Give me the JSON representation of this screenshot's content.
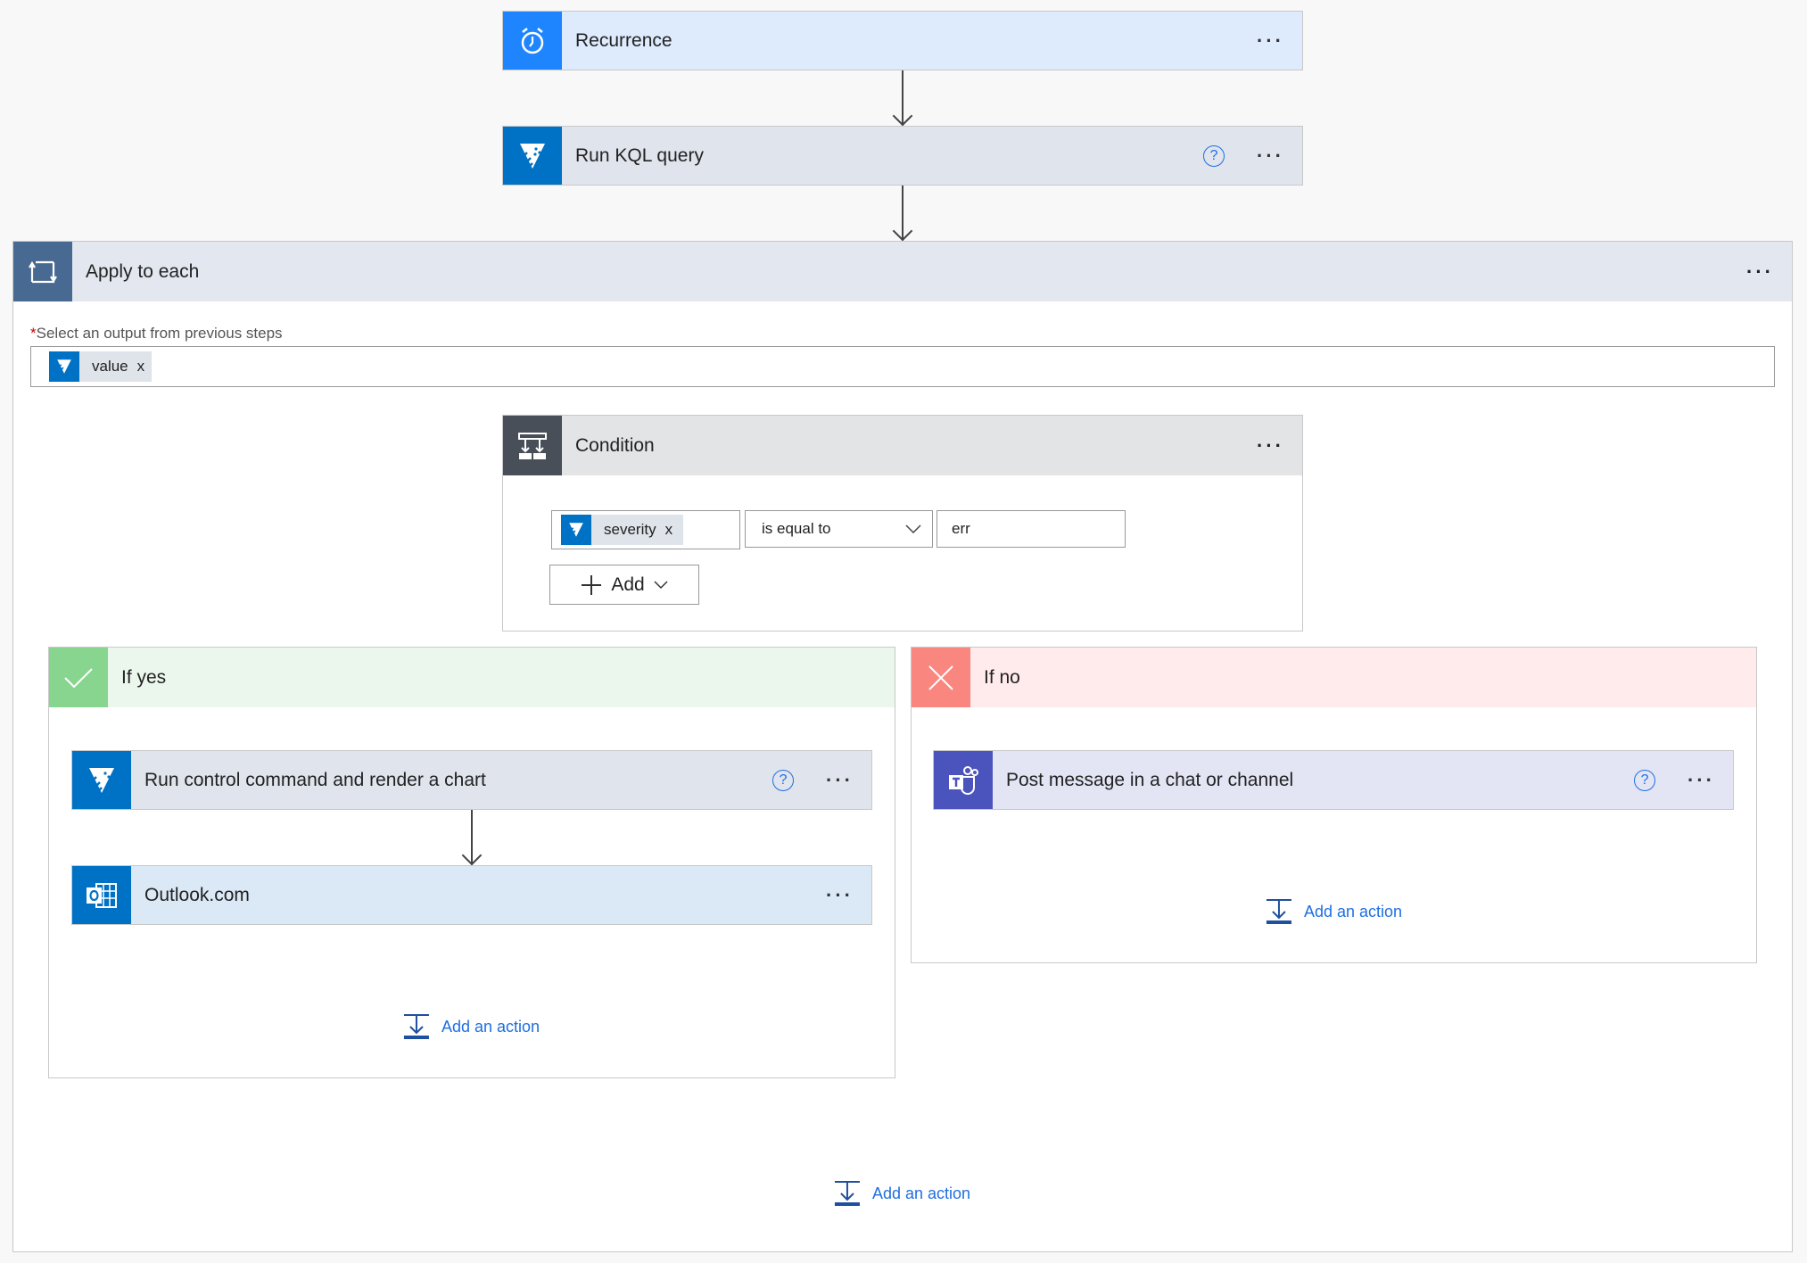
{
  "steps": {
    "recurrence": {
      "title": "Recurrence",
      "icon": "alarm-clock-icon",
      "color": "#1f85ff"
    },
    "kql": {
      "title": "Run KQL query",
      "icon": "kusto-icon",
      "color": "#0072c6"
    },
    "apply": {
      "title": "Apply to each",
      "icon": "loop-icon",
      "color": "#486991",
      "required_mark": "*",
      "label": "Select an output from previous steps",
      "token": "value",
      "token_remove": "x"
    },
    "condition": {
      "title": "Condition",
      "icon": "condition-icon",
      "color": "#484f58",
      "token": "severity",
      "token_remove": "x",
      "operator": "is equal to",
      "value": "err",
      "add_label": "Add"
    },
    "if_yes": {
      "title": "If yes",
      "color": "#88d58f",
      "actions": [
        {
          "title": "Run control command and render a chart"
        },
        {
          "title": "Outlook.com"
        }
      ],
      "add_action": "Add an action"
    },
    "if_no": {
      "title": "If no",
      "color": "#f9877f",
      "actions": [
        {
          "title": "Post message in a chat or channel"
        }
      ],
      "add_action": "Add an action"
    },
    "bottom_add_action": "Add an action"
  },
  "common": {
    "more": "···",
    "help": "?"
  }
}
